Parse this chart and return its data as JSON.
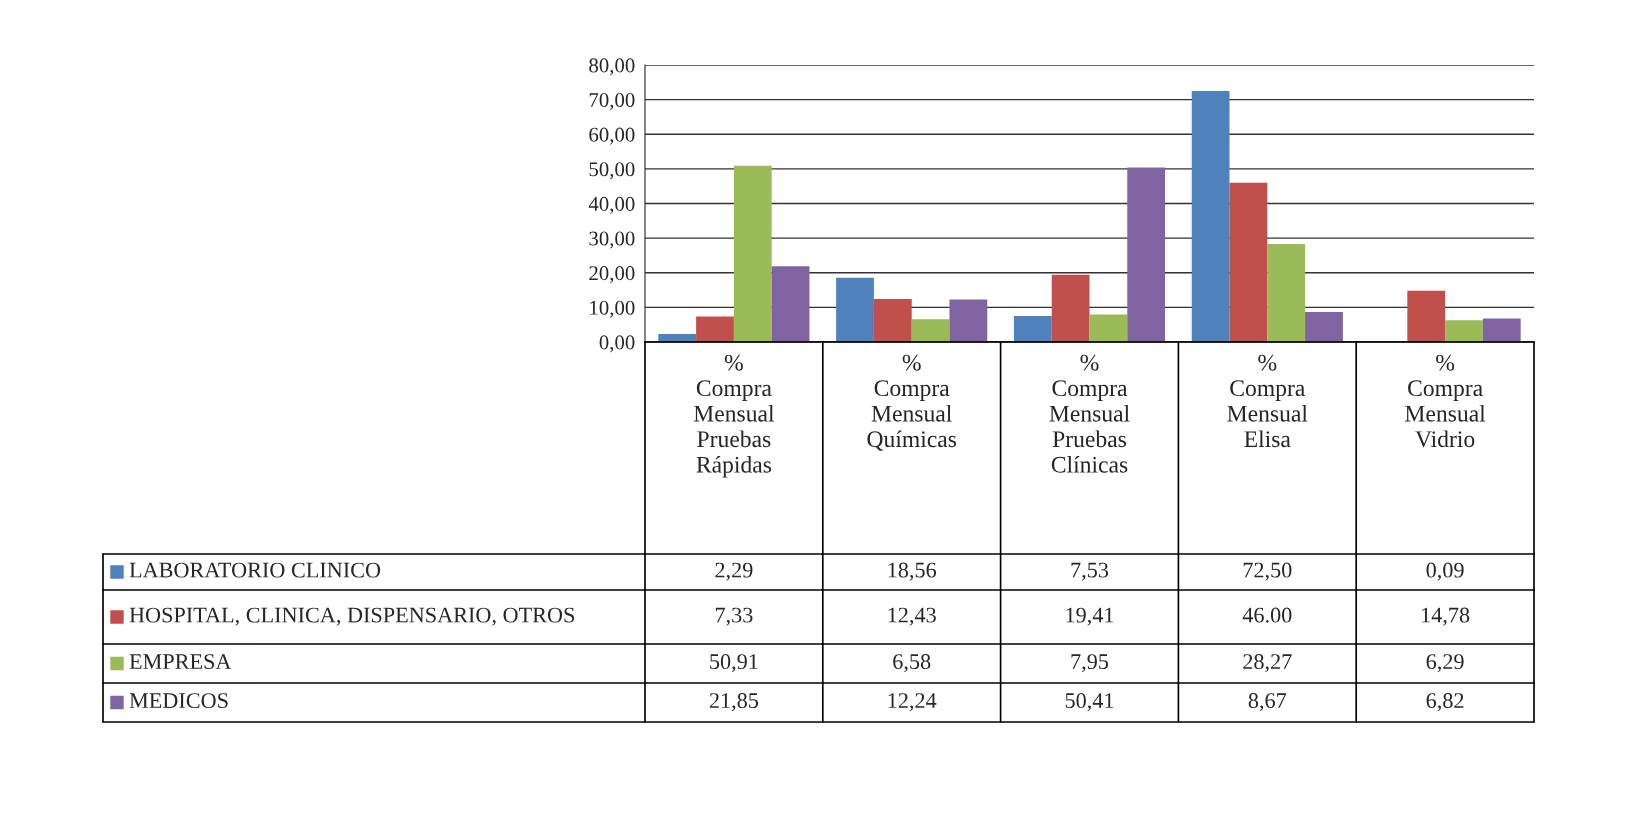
{
  "chart_data": {
    "type": "bar",
    "categories": [
      "% Compra Mensual Pruebas Rápidas",
      "% Compra Mensual Químicas",
      "% Compra Mensual Pruebas Clínicas",
      "% Compra Mensual Elisa",
      "% Compra Mensual Vidrio"
    ],
    "series": [
      {
        "name": "LABORATORIO CLINICO",
        "color": "#4f81bd",
        "values": [
          2.29,
          18.56,
          7.53,
          72.5,
          0.09
        ],
        "value_labels": [
          "2,29",
          "18,56",
          "7,53",
          "72,50",
          "0,09"
        ]
      },
      {
        "name": "HOSPITAL, CLINICA, DISPENSARIO, OTROS",
        "color": "#c0504d",
        "values": [
          7.33,
          12.43,
          19.41,
          46.0,
          14.78
        ],
        "value_labels": [
          "7,33",
          "12,43",
          "19,41",
          "46.00",
          "14,78"
        ]
      },
      {
        "name": "EMPRESA",
        "color": "#9bbb59",
        "values": [
          50.91,
          6.58,
          7.95,
          28.27,
          6.29
        ],
        "value_labels": [
          "50,91",
          "6,58",
          "7,95",
          "28,27",
          "6,29"
        ]
      },
      {
        "name": "MEDICOS",
        "color": "#8064a2",
        "values": [
          21.85,
          12.24,
          50.41,
          8.67,
          6.82
        ],
        "value_labels": [
          "21,85",
          "12,24",
          "50,41",
          "8,67",
          "6,82"
        ]
      }
    ],
    "ylim": [
      0,
      80
    ],
    "yticks": [
      {
        "value": 0,
        "label": "0,00"
      },
      {
        "value": 10,
        "label": "10,00"
      },
      {
        "value": 20,
        "label": "20,00"
      },
      {
        "value": 30,
        "label": "30,00"
      },
      {
        "value": 40,
        "label": "40,00"
      },
      {
        "value": 50,
        "label": "50,00"
      },
      {
        "value": 60,
        "label": "60,00"
      },
      {
        "value": 70,
        "label": "70,00"
      },
      {
        "value": 80,
        "label": "80,00"
      }
    ],
    "grid": "y",
    "legend": "bottom",
    "tick_labels": "y"
  }
}
